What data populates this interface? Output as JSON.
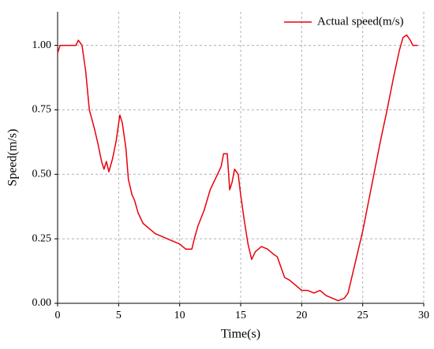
{
  "chart_data": {
    "type": "line",
    "xlabel": "Time(s)",
    "ylabel": "Speed(m/s)",
    "xlim": [
      0,
      30
    ],
    "xticks": [
      0,
      5,
      10,
      15,
      20,
      25,
      30
    ],
    "ylim": [
      0,
      1.13
    ],
    "yticks": [
      {
        "value": 0,
        "label": "0.00"
      },
      {
        "value": 0.25,
        "label": "0.25"
      },
      {
        "value": 0.5,
        "label": "0.50"
      },
      {
        "value": 0.75,
        "label": "0.75"
      },
      {
        "value": 1,
        "label": "1.00"
      }
    ],
    "grid": true,
    "legend": "upper right",
    "x": [
      0,
      0.2,
      1,
      1.5,
      1.7,
      2,
      2.3,
      2.6,
      3,
      3.3,
      3.6,
      3.8,
      4,
      4.2,
      4.5,
      4.8,
      5.1,
      5.3,
      5.6,
      5.8,
      6.1,
      6.3,
      6.6,
      7,
      7.5,
      8,
      8.5,
      9,
      9.5,
      10,
      10.5,
      11,
      11.2,
      11.5,
      12,
      12.5,
      13,
      13.4,
      13.6,
      13.9,
      14.1,
      14.3,
      14.5,
      14.8,
      15,
      15.3,
      15.6,
      15.9,
      16.2,
      16.7,
      17.2,
      17.7,
      18,
      18.3,
      18.6,
      19,
      19.5,
      20,
      20.5,
      21,
      21.5,
      22,
      22.5,
      23,
      23.5,
      23.8,
      24,
      24.5,
      25,
      25.5,
      26,
      26.5,
      27,
      27.5,
      28,
      28.3,
      28.6,
      28.9,
      29.1,
      29.5
    ],
    "series": [
      {
        "name": "Actual speed(m/s)",
        "color": "#e8000b",
        "values": [
          0.97,
          1.0,
          1.0,
          1.0,
          1.02,
          1.0,
          0.9,
          0.75,
          0.68,
          0.62,
          0.55,
          0.52,
          0.55,
          0.51,
          0.56,
          0.63,
          0.73,
          0.7,
          0.6,
          0.48,
          0.42,
          0.4,
          0.35,
          0.31,
          0.29,
          0.27,
          0.26,
          0.25,
          0.24,
          0.23,
          0.21,
          0.21,
          0.25,
          0.3,
          0.36,
          0.44,
          0.49,
          0.53,
          0.58,
          0.58,
          0.44,
          0.47,
          0.52,
          0.5,
          0.42,
          0.32,
          0.23,
          0.17,
          0.2,
          0.22,
          0.21,
          0.19,
          0.18,
          0.14,
          0.1,
          0.09,
          0.07,
          0.05,
          0.05,
          0.04,
          0.05,
          0.03,
          0.02,
          0.01,
          0.02,
          0.04,
          0.08,
          0.18,
          0.28,
          0.4,
          0.52,
          0.64,
          0.75,
          0.87,
          0.98,
          1.03,
          1.04,
          1.02,
          1.0,
          1.0
        ]
      }
    ]
  }
}
